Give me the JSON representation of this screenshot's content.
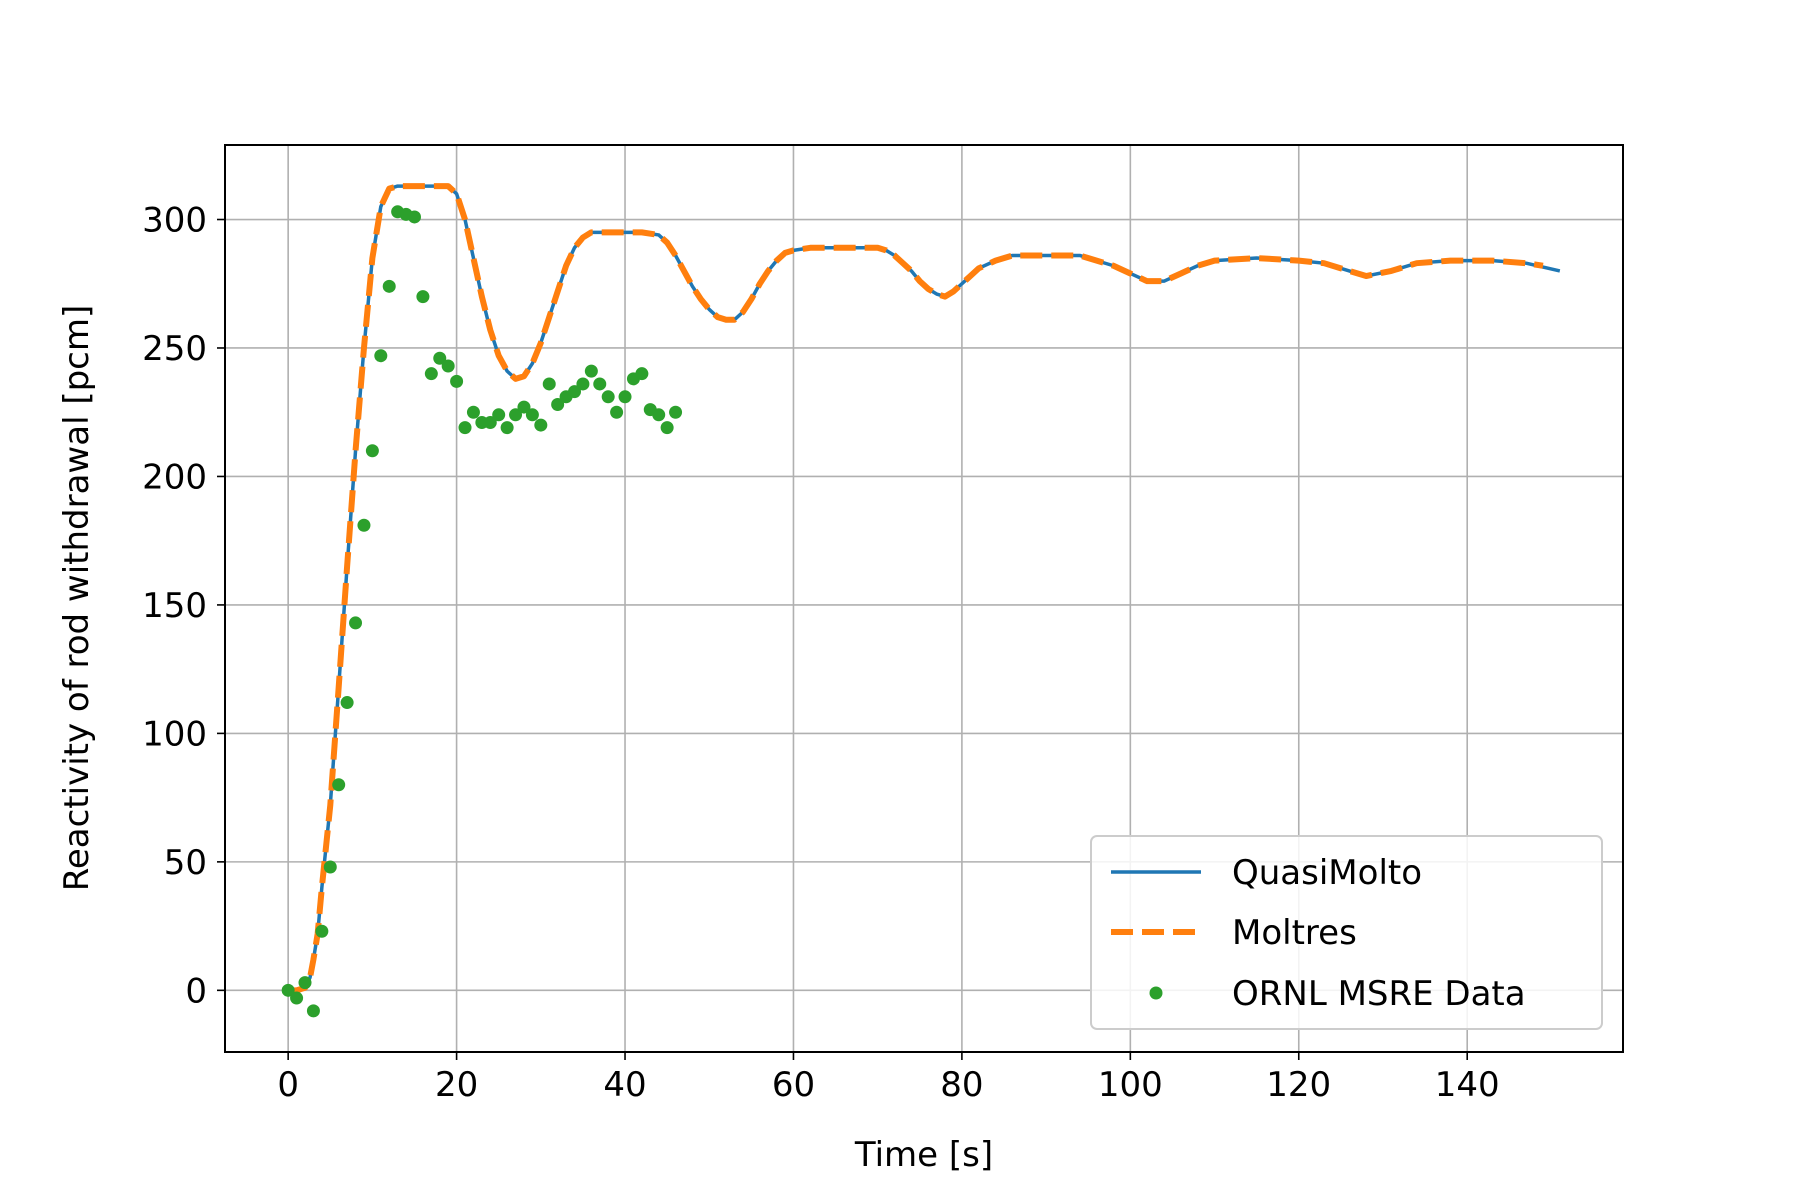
{
  "chart_data": {
    "type": "line",
    "title": "",
    "xlabel": "Time [s]",
    "ylabel": "Reactivity of rod withdrawal [pcm]",
    "xlim": [
      -7.5,
      158.5
    ],
    "ylim": [
      -24,
      329
    ],
    "xticks": [
      0,
      20,
      40,
      60,
      80,
      100,
      120,
      140
    ],
    "yticks": [
      0,
      50,
      100,
      150,
      200,
      250,
      300
    ],
    "grid": true,
    "legend_position": "lower right",
    "series": [
      {
        "name": "QuasiMolto",
        "kind": "line",
        "color": "#1f77b4",
        "style": "solid",
        "points": [
          [
            0,
            0
          ],
          [
            1,
            0
          ],
          [
            2,
            1
          ],
          [
            2.6,
            5
          ],
          [
            3,
            12
          ],
          [
            3.5,
            22
          ],
          [
            4,
            40
          ],
          [
            5,
            72
          ],
          [
            6,
            118
          ],
          [
            7,
            165
          ],
          [
            8,
            210
          ],
          [
            9,
            250
          ],
          [
            10,
            285
          ],
          [
            11,
            305
          ],
          [
            12,
            312
          ],
          [
            13,
            313
          ],
          [
            15,
            313
          ],
          [
            17,
            313
          ],
          [
            19,
            313
          ],
          [
            20,
            310
          ],
          [
            21,
            300
          ],
          [
            22,
            285
          ],
          [
            23,
            270
          ],
          [
            24,
            257
          ],
          [
            25,
            247
          ],
          [
            26,
            241
          ],
          [
            27,
            238
          ],
          [
            28,
            239
          ],
          [
            29,
            244
          ],
          [
            30,
            252
          ],
          [
            31,
            262
          ],
          [
            32,
            272
          ],
          [
            33,
            282
          ],
          [
            34,
            289
          ],
          [
            35,
            293
          ],
          [
            36,
            295
          ],
          [
            38,
            295
          ],
          [
            40,
            295
          ],
          [
            42,
            295
          ],
          [
            44,
            294
          ],
          [
            45,
            291
          ],
          [
            46,
            286
          ],
          [
            47,
            280
          ],
          [
            48,
            274
          ],
          [
            49,
            269
          ],
          [
            50,
            265
          ],
          [
            51,
            262
          ],
          [
            52,
            261
          ],
          [
            53,
            261
          ],
          [
            54,
            264
          ],
          [
            55,
            269
          ],
          [
            56,
            275
          ],
          [
            57,
            280
          ],
          [
            58,
            284
          ],
          [
            59,
            287
          ],
          [
            60,
            288
          ],
          [
            62,
            289
          ],
          [
            65,
            289
          ],
          [
            68,
            289
          ],
          [
            70,
            289
          ],
          [
            71,
            288
          ],
          [
            72,
            286
          ],
          [
            73,
            283
          ],
          [
            74,
            280
          ],
          [
            75,
            276
          ],
          [
            76,
            273
          ],
          [
            77,
            271
          ],
          [
            78,
            270
          ],
          [
            79,
            272
          ],
          [
            80,
            275
          ],
          [
            81,
            278
          ],
          [
            82,
            281
          ],
          [
            84,
            284
          ],
          [
            86,
            286
          ],
          [
            90,
            286
          ],
          [
            94,
            286
          ],
          [
            96,
            284
          ],
          [
            98,
            282
          ],
          [
            100,
            279
          ],
          [
            102,
            276
          ],
          [
            104,
            276
          ],
          [
            106,
            279
          ],
          [
            108,
            282
          ],
          [
            110,
            284
          ],
          [
            115,
            285
          ],
          [
            120,
            284
          ],
          [
            123,
            283
          ],
          [
            126,
            280
          ],
          [
            128,
            278
          ],
          [
            131,
            280
          ],
          [
            134,
            283
          ],
          [
            138,
            284
          ],
          [
            143,
            284
          ],
          [
            147,
            283
          ],
          [
            151,
            280
          ]
        ]
      },
      {
        "name": "Moltres",
        "kind": "line",
        "color": "#ff7f0e",
        "style": "dashed",
        "points": [
          [
            0,
            0
          ],
          [
            1,
            0
          ],
          [
            2,
            1
          ],
          [
            2.6,
            5
          ],
          [
            3,
            12
          ],
          [
            3.5,
            22
          ],
          [
            4,
            40
          ],
          [
            5,
            72
          ],
          [
            6,
            118
          ],
          [
            7,
            165
          ],
          [
            8,
            210
          ],
          [
            9,
            250
          ],
          [
            10,
            285
          ],
          [
            11,
            305
          ],
          [
            12,
            312
          ],
          [
            13,
            313
          ],
          [
            15,
            313
          ],
          [
            17,
            313
          ],
          [
            19,
            313
          ],
          [
            20,
            310
          ],
          [
            21,
            300
          ],
          [
            22,
            285
          ],
          [
            23,
            270
          ],
          [
            24,
            257
          ],
          [
            25,
            247
          ],
          [
            26,
            241
          ],
          [
            27,
            238
          ],
          [
            28,
            239
          ],
          [
            29,
            244
          ],
          [
            30,
            252
          ],
          [
            31,
            262
          ],
          [
            32,
            272
          ],
          [
            33,
            282
          ],
          [
            34,
            289
          ],
          [
            35,
            293
          ],
          [
            36,
            295
          ],
          [
            38,
            295
          ],
          [
            40,
            295
          ],
          [
            42,
            295
          ],
          [
            44,
            294
          ],
          [
            45,
            291
          ],
          [
            46,
            286
          ],
          [
            47,
            280
          ],
          [
            48,
            274
          ],
          [
            49,
            269
          ],
          [
            50,
            265
          ],
          [
            51,
            262
          ],
          [
            52,
            261
          ],
          [
            53,
            261
          ],
          [
            54,
            264
          ],
          [
            55,
            269
          ],
          [
            56,
            275
          ],
          [
            57,
            280
          ],
          [
            58,
            284
          ],
          [
            59,
            287
          ],
          [
            60,
            288
          ],
          [
            62,
            289
          ],
          [
            65,
            289
          ],
          [
            68,
            289
          ],
          [
            70,
            289
          ],
          [
            71,
            288
          ],
          [
            72,
            286
          ],
          [
            73,
            283
          ],
          [
            74,
            280
          ],
          [
            75,
            276
          ],
          [
            76,
            273
          ],
          [
            77,
            271
          ],
          [
            78,
            270
          ],
          [
            79,
            272
          ],
          [
            80,
            275
          ],
          [
            81,
            278
          ],
          [
            82,
            281
          ],
          [
            84,
            284
          ],
          [
            86,
            286
          ],
          [
            90,
            286
          ],
          [
            94,
            286
          ],
          [
            96,
            284
          ],
          [
            98,
            282
          ],
          [
            100,
            279
          ],
          [
            102,
            276
          ],
          [
            104,
            276
          ],
          [
            106,
            279
          ],
          [
            108,
            282
          ],
          [
            110,
            284
          ],
          [
            115,
            285
          ],
          [
            120,
            284
          ],
          [
            123,
            283
          ],
          [
            126,
            280
          ],
          [
            128,
            278
          ],
          [
            131,
            280
          ],
          [
            134,
            283
          ],
          [
            138,
            284
          ],
          [
            143,
            284
          ],
          [
            147,
            283
          ],
          [
            149,
            282
          ]
        ]
      },
      {
        "name": "ORNL MSRE Data",
        "kind": "scatter",
        "color": "#2ca02c",
        "points": [
          [
            0,
            0
          ],
          [
            1,
            -3
          ],
          [
            2,
            3
          ],
          [
            3,
            -8
          ],
          [
            4,
            23
          ],
          [
            5,
            48
          ],
          [
            6,
            80
          ],
          [
            7,
            112
          ],
          [
            8,
            143
          ],
          [
            9,
            181
          ],
          [
            10,
            210
          ],
          [
            11,
            247
          ],
          [
            12,
            274
          ],
          [
            13,
            303
          ],
          [
            14,
            302
          ],
          [
            15,
            301
          ],
          [
            16,
            270
          ],
          [
            17,
            240
          ],
          [
            18,
            246
          ],
          [
            19,
            243
          ],
          [
            20,
            237
          ],
          [
            21,
            219
          ],
          [
            22,
            225
          ],
          [
            23,
            221
          ],
          [
            24,
            221
          ],
          [
            25,
            224
          ],
          [
            26,
            219
          ],
          [
            27,
            224
          ],
          [
            28,
            227
          ],
          [
            29,
            224
          ],
          [
            30,
            220
          ],
          [
            31,
            236
          ],
          [
            32,
            228
          ],
          [
            33,
            231
          ],
          [
            34,
            233
          ],
          [
            35,
            236
          ],
          [
            36,
            241
          ],
          [
            37,
            236
          ],
          [
            38,
            231
          ],
          [
            39,
            225
          ],
          [
            40,
            231
          ],
          [
            41,
            238
          ],
          [
            42,
            240
          ],
          [
            43,
            226
          ],
          [
            44,
            224
          ],
          [
            45,
            219
          ],
          [
            46,
            225
          ]
        ]
      }
    ]
  }
}
